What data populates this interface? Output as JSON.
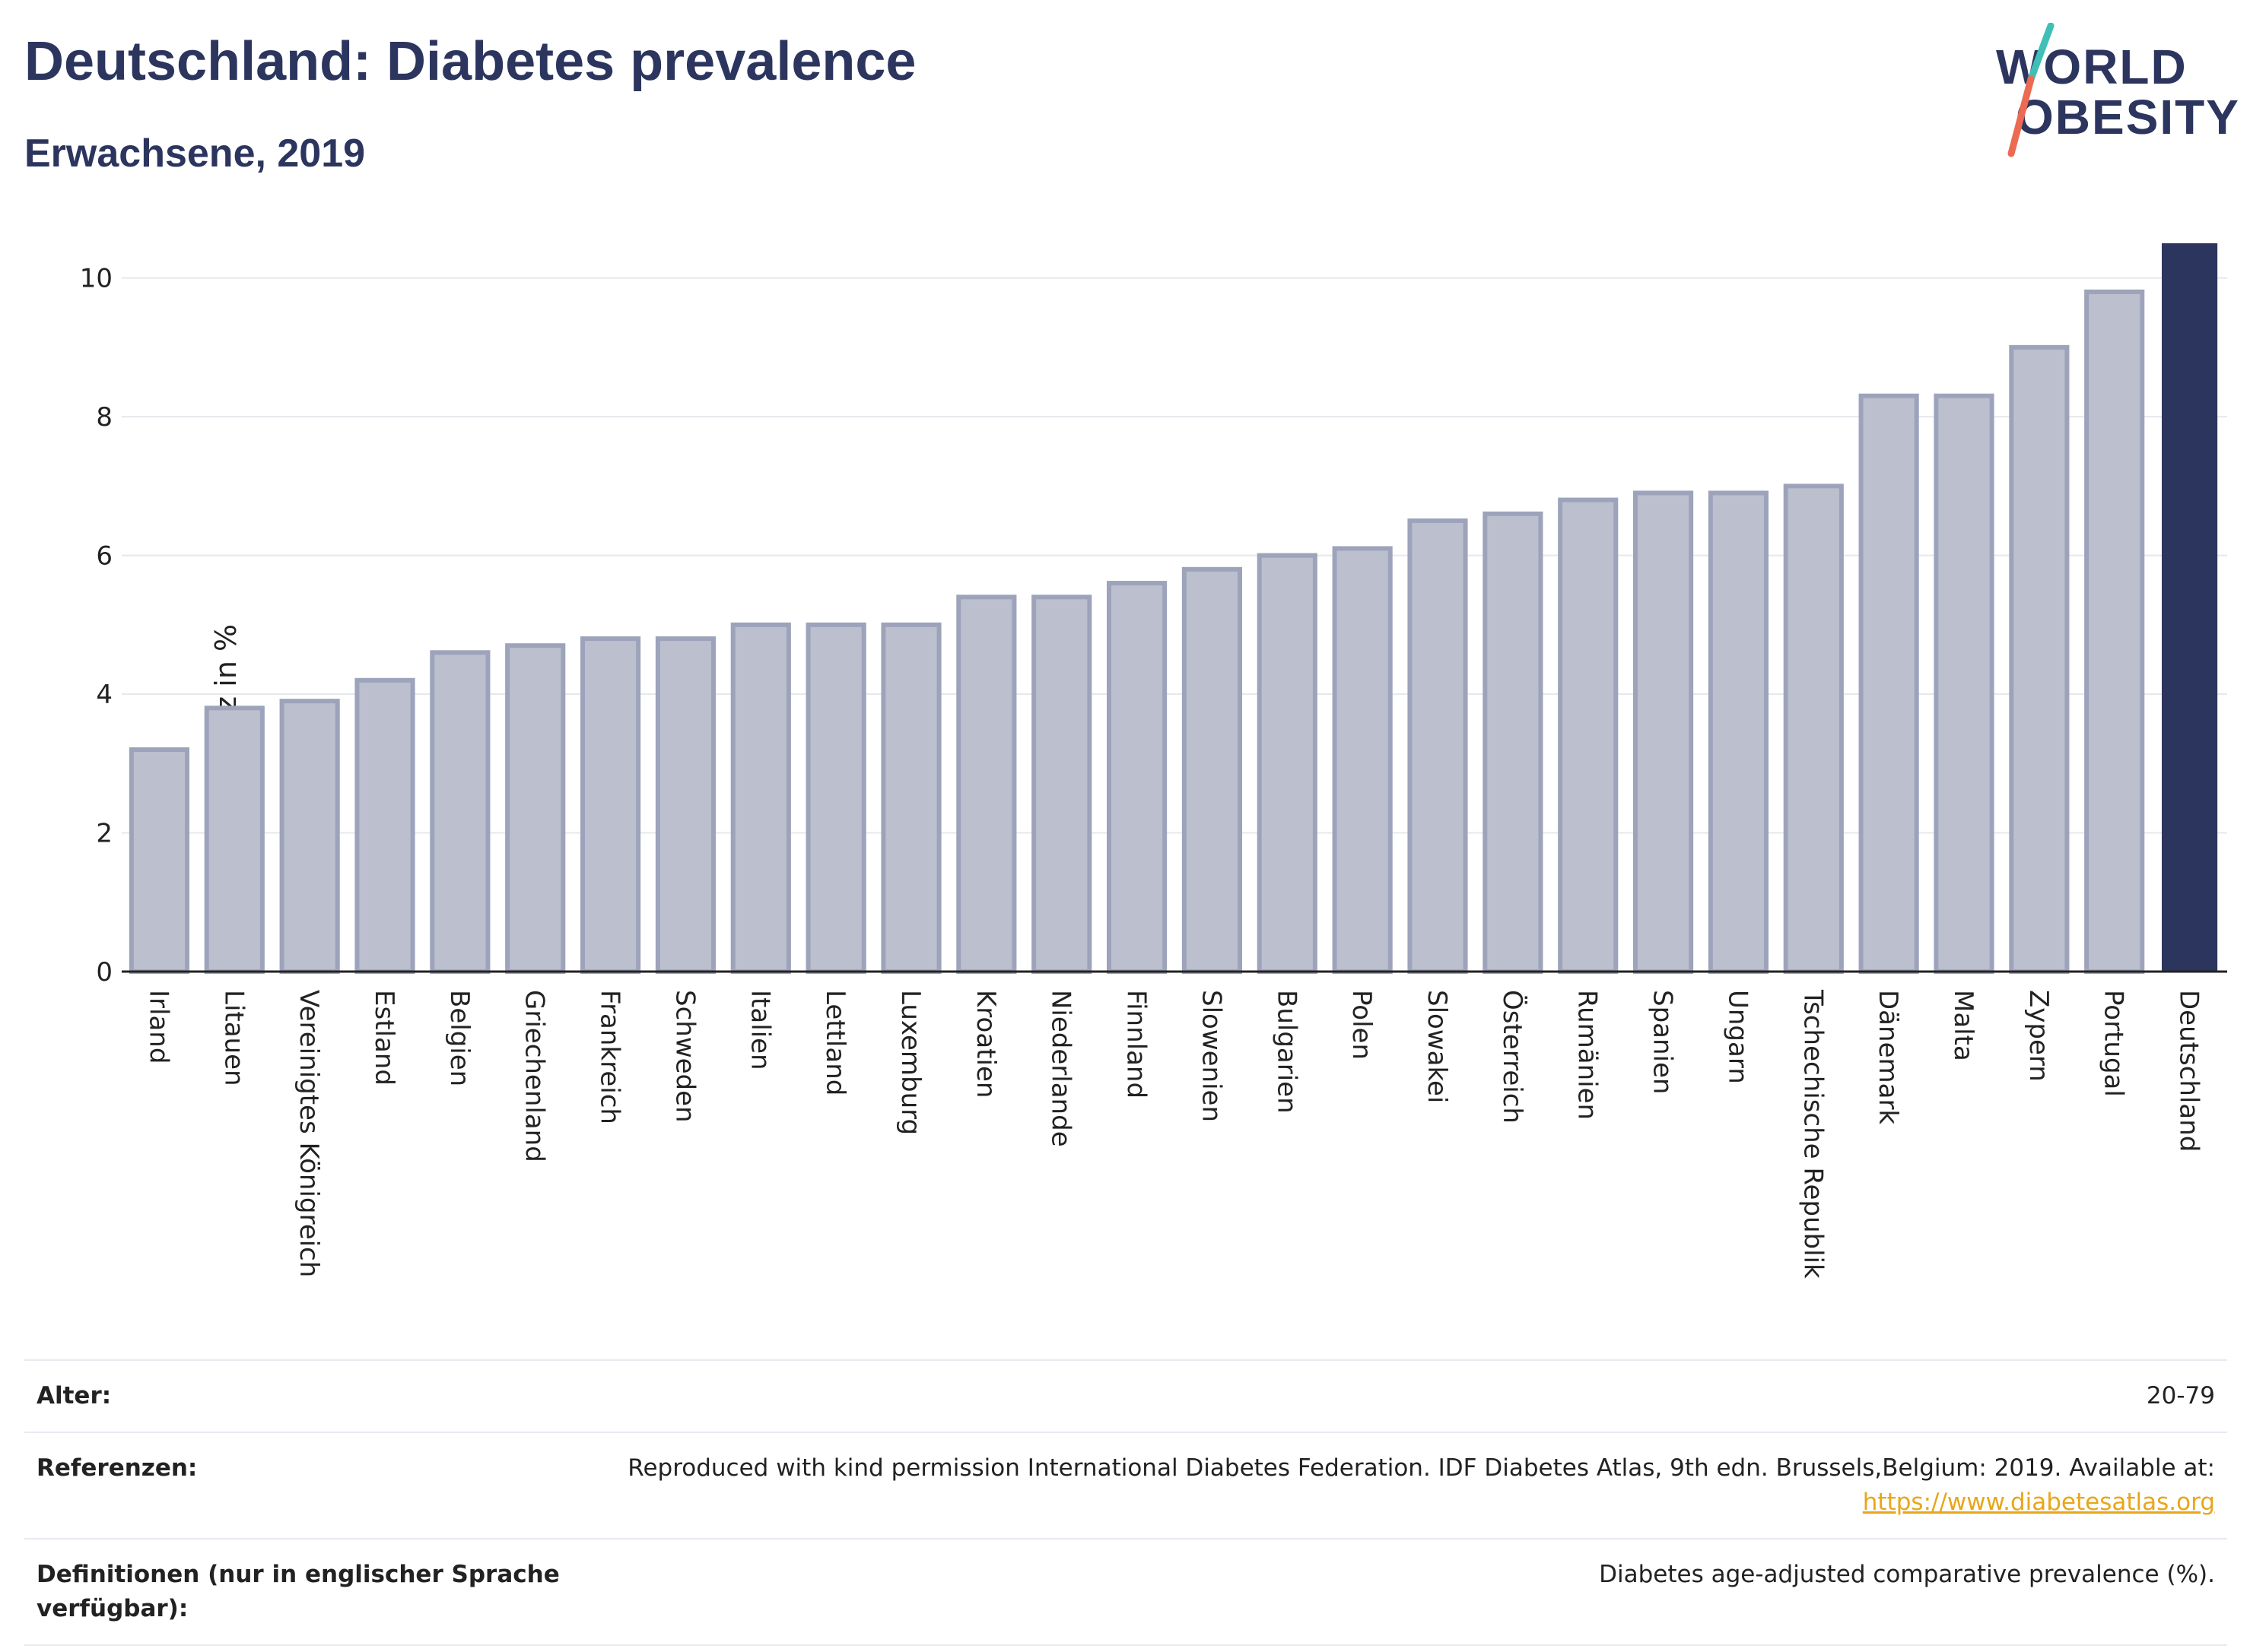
{
  "header": {
    "title": "Deutschland: Diabetes prevalence",
    "subtitle": "Erwachsene, 2019"
  },
  "logo": {
    "line1": "WORLD",
    "line2": "OBESITY",
    "colors": {
      "text": "#2c355e",
      "slash_top": "#3fbfb5",
      "slash_bottom": "#ec6a52"
    }
  },
  "chart_data": {
    "type": "bar",
    "ylabel": "Diabetes-Prävalenz in %",
    "xlabel": "",
    "ylim": [
      0,
      10.5
    ],
    "yticks": [
      0,
      2,
      4,
      6,
      8,
      10
    ],
    "grid": true,
    "categories": [
      "Irland",
      "Litauen",
      "Vereinigtes Königreich",
      "Estland",
      "Belgien",
      "Griechenland",
      "Frankreich",
      "Schweden",
      "Italien",
      "Lettland",
      "Luxemburg",
      "Kroatien",
      "Niederlande",
      "Finnland",
      "Slowenien",
      "Bulgarien",
      "Polen",
      "Slowakei",
      "Österreich",
      "Rumänien",
      "Spanien",
      "Ungarn",
      "Tschechische Republik",
      "Dänemark",
      "Malta",
      "Zypern",
      "Portugal",
      "Deutschland"
    ],
    "values": [
      3.2,
      3.8,
      3.9,
      4.2,
      4.6,
      4.7,
      4.8,
      4.8,
      5.0,
      5.0,
      5.0,
      5.4,
      5.4,
      5.6,
      5.8,
      6.0,
      6.1,
      6.5,
      6.6,
      6.8,
      6.9,
      6.9,
      7.0,
      8.3,
      8.3,
      9.0,
      9.8,
      10.5
    ],
    "highlight": "Deutschland",
    "colors": {
      "bar": "#bcc0ce",
      "bar_border": "#9da3ba",
      "highlight": "#2c355e",
      "grid": "#e6e8ee"
    }
  },
  "meta": {
    "age_label": "Alter:",
    "age_value": "20-79",
    "ref_label": "Referenzen:",
    "ref_text": "Reproduced with kind permission International Diabetes Federation. IDF Diabetes Atlas, 9th edn. Brussels,Belgium: 2019. Available at:",
    "ref_link": "https://www.diabetesatlas.org",
    "def_label": "Definitionen (nur in englischer Sprache verfügbar):",
    "def_value": "Diabetes age-adjusted comparative prevalence (%)."
  }
}
